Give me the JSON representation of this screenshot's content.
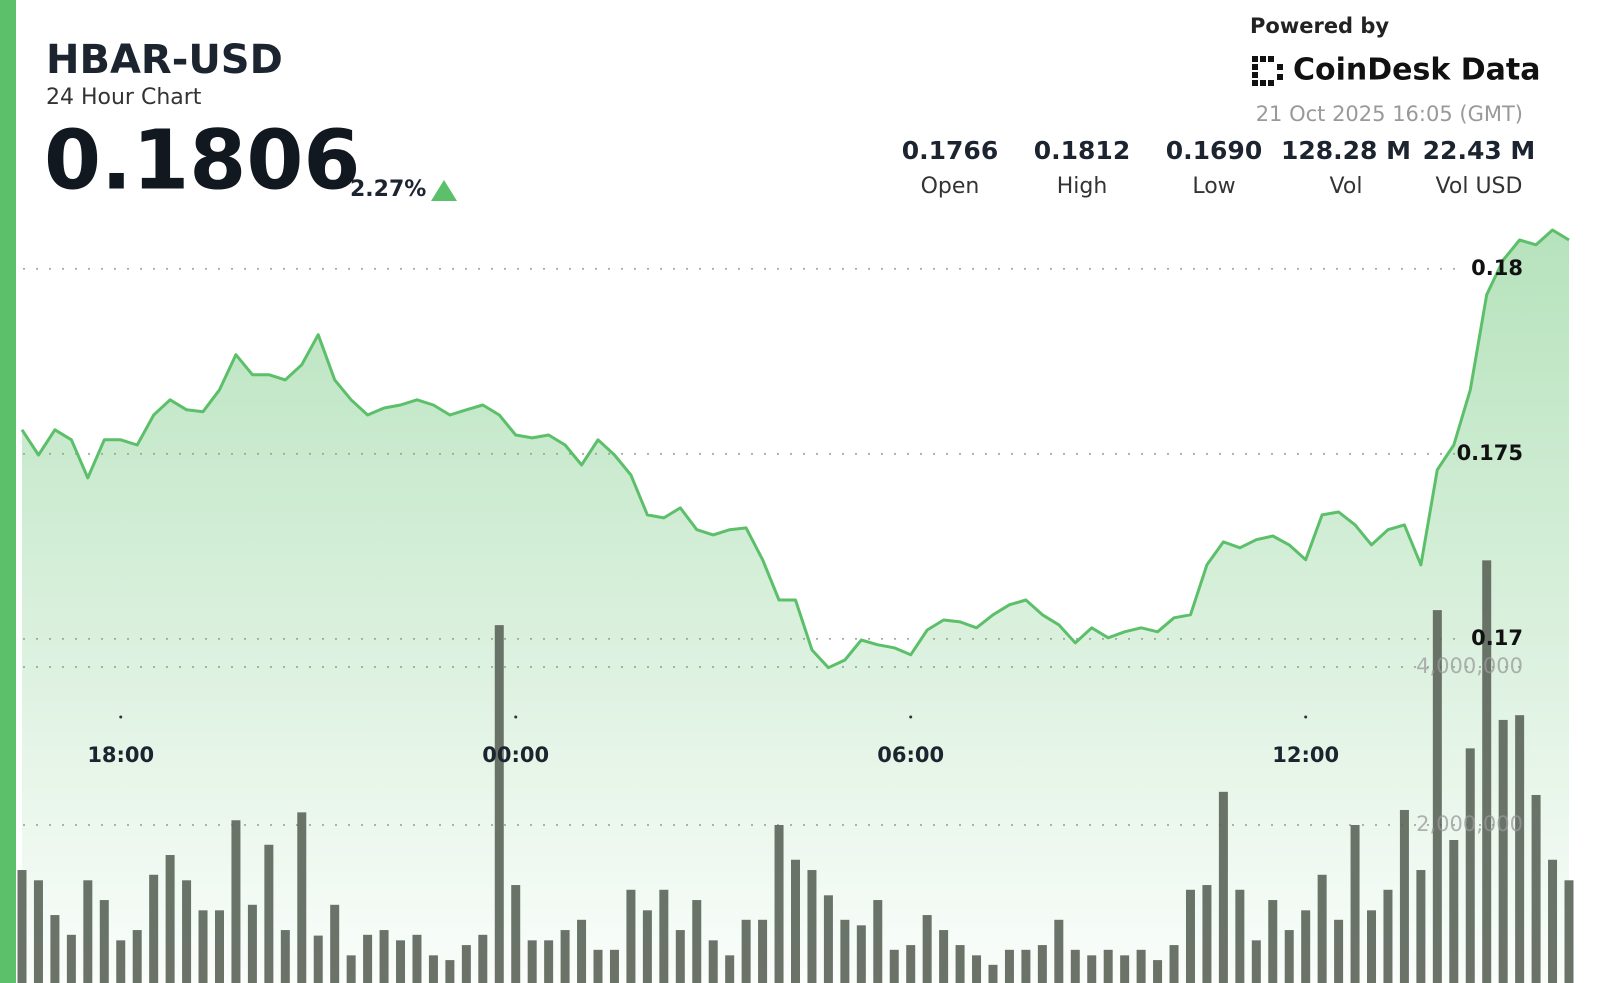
{
  "header": {
    "title": "HBAR-USD",
    "subtitle": "24 Hour Chart",
    "price": "0.1806",
    "change": "2.27%",
    "powered_by": "Powered by",
    "brand": "CoinDesk Data",
    "timestamp": "21 Oct 2025 16:05 (GMT)",
    "stats": [
      {
        "value": "0.1766",
        "label": "Open"
      },
      {
        "value": "0.1812",
        "label": "High"
      },
      {
        "value": "0.1690",
        "label": "Low"
      },
      {
        "value": "128.28 M",
        "label": "Vol"
      },
      {
        "value": "22.43 M",
        "label": "Vol USD"
      }
    ]
  },
  "chart_data": {
    "type": "line",
    "x": [
      "16:30",
      "16:45",
      "17:00",
      "17:15",
      "17:30",
      "17:45",
      "18:00",
      "18:15",
      "18:30",
      "18:45",
      "19:00",
      "19:15",
      "19:30",
      "19:45",
      "20:00",
      "20:15",
      "20:30",
      "20:45",
      "21:00",
      "21:15",
      "21:30",
      "21:45",
      "22:00",
      "22:15",
      "22:30",
      "22:45",
      "23:00",
      "23:15",
      "23:30",
      "23:45",
      "00:00",
      "00:15",
      "00:30",
      "00:45",
      "01:00",
      "01:15",
      "01:30",
      "01:45",
      "02:00",
      "02:15",
      "02:30",
      "02:45",
      "03:00",
      "03:15",
      "03:30",
      "03:45",
      "04:00",
      "04:15",
      "04:30",
      "04:45",
      "05:00",
      "05:15",
      "05:30",
      "05:45",
      "06:00",
      "06:15",
      "06:30",
      "06:45",
      "07:00",
      "07:15",
      "07:30",
      "07:45",
      "08:00",
      "08:15",
      "08:30",
      "08:45",
      "09:00",
      "09:15",
      "09:30",
      "09:45",
      "10:00",
      "10:15",
      "10:30",
      "10:45",
      "11:00",
      "11:15",
      "11:30",
      "11:45",
      "12:00",
      "12:15",
      "12:30",
      "12:45",
      "13:00",
      "13:15",
      "13:30",
      "13:45",
      "14:00",
      "14:15",
      "14:30",
      "14:45",
      "15:00",
      "15:15",
      "15:30",
      "15:45",
      "16:00"
    ],
    "series": [
      {
        "color": "#5cbf6a",
        "values": [
          0.17565,
          0.17497,
          0.17565,
          0.17538,
          0.17435,
          0.17538,
          0.17538,
          0.17524,
          0.17605,
          0.17646,
          0.17619,
          0.17614,
          0.17673,
          0.17768,
          0.17714,
          0.17714,
          0.177,
          0.17741,
          0.17822,
          0.177,
          0.17646,
          0.17605,
          0.17624,
          0.17632,
          0.17646,
          0.17632,
          0.17605,
          0.17619,
          0.17632,
          0.17605,
          0.17551,
          0.17543,
          0.17551,
          0.17524,
          0.1747,
          0.17538,
          0.17497,
          0.17443,
          0.17335,
          0.17327,
          0.17354,
          0.17295,
          0.17281,
          0.17295,
          0.173,
          0.17214,
          0.17105,
          0.17105,
          0.1697,
          0.16922,
          0.16943,
          0.16997,
          0.16984,
          0.16976,
          0.16957,
          0.17024,
          0.17051,
          0.17046,
          0.1703,
          0.17065,
          0.17092,
          0.17105,
          0.17065,
          0.17038,
          0.16989,
          0.1703,
          0.17003,
          0.17019,
          0.1703,
          0.17019,
          0.17057,
          0.17065,
          0.172,
          0.17262,
          0.17246,
          0.17268,
          0.17278,
          0.17254,
          0.17214,
          0.17335,
          0.17343,
          0.17308,
          0.17254,
          0.17295,
          0.17308,
          0.172,
          0.17457,
          0.17524,
          0.17673,
          0.1793,
          0.18024,
          0.18078,
          0.18065,
          0.18105,
          0.18078
        ]
      },
      {
        "type": "bar",
        "axis": "y2",
        "color": "#5b6459",
        "values": [
          1430000,
          1300000,
          860000,
          610000,
          1300000,
          1050000,
          540000,
          670000,
          1370000,
          1620000,
          1300000,
          920000,
          920000,
          2060000,
          990000,
          1750000,
          670000,
          2160000,
          600000,
          990000,
          350000,
          610000,
          670000,
          540000,
          610000,
          350000,
          290000,
          480000,
          610000,
          4530000,
          1240000,
          540000,
          540000,
          670000,
          800000,
          420000,
          420000,
          1180000,
          920000,
          1180000,
          670000,
          1050000,
          540000,
          350000,
          800000,
          800000,
          2000000,
          1560000,
          1430000,
          1110000,
          800000,
          730000,
          1050000,
          420000,
          480000,
          860000,
          670000,
          480000,
          350000,
          230000,
          420000,
          420000,
          480000,
          800000,
          420000,
          350000,
          420000,
          350000,
          420000,
          290000,
          480000,
          1180000,
          1240000,
          2420000,
          1180000,
          540000,
          1050000,
          670000,
          920000,
          1370000,
          800000,
          2000000,
          920000,
          1180000,
          2190000,
          1430000,
          4720000,
          1810000,
          2970000,
          5350000,
          3330000,
          3390000,
          2380000,
          1560000,
          1300000
        ]
      }
    ],
    "xticks": [
      "18:00",
      "00:00",
      "06:00",
      "12:00"
    ],
    "ylim": [
      0.1607,
      0.18132
    ],
    "yticks": [
      0.17,
      0.175,
      0.18
    ],
    "y2lim": [
      0,
      9658000
    ],
    "y2ticks": [
      {
        "value": 2000000,
        "label": "2,000,000"
      },
      {
        "value": 4000000,
        "label": "4,000,000"
      }
    ],
    "grid": true
  }
}
